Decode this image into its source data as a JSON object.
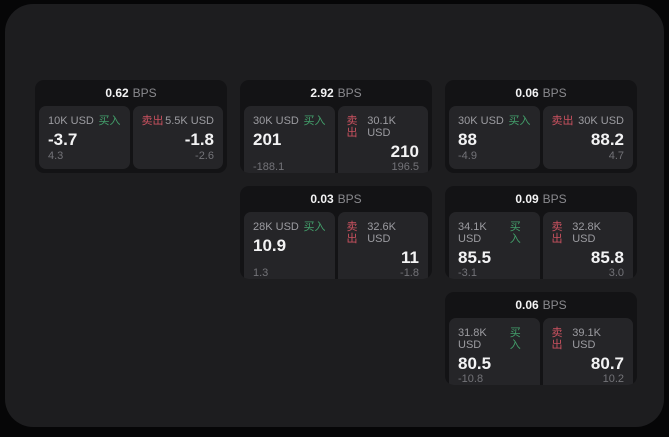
{
  "labels": {
    "bps": "BPS",
    "buy": "买入",
    "sell": "卖出"
  },
  "colors": {
    "buy": "#43a06b",
    "sell": "#cb5260"
  },
  "cards": [
    {
      "bps": "0.62",
      "buy": {
        "amount": "10K USD",
        "price": "-3.7",
        "delta": "4.3"
      },
      "sell": {
        "amount": "5.5K USD",
        "price": "-1.8",
        "delta": "-2.6"
      }
    },
    {
      "bps": "2.92",
      "buy": {
        "amount": "30K USD",
        "price": "201",
        "delta": "-188.1"
      },
      "sell": {
        "amount": "30.1K USD",
        "price": "210",
        "delta": "196.5"
      }
    },
    {
      "bps": "0.06",
      "buy": {
        "amount": "30K USD",
        "price": "88",
        "delta": "-4.9"
      },
      "sell": {
        "amount": "30K USD",
        "price": "88.2",
        "delta": "4.7"
      }
    },
    {
      "bps": "0.03",
      "buy": {
        "amount": "28K USD",
        "price": "10.9",
        "delta": "1.3"
      },
      "sell": {
        "amount": "32.6K USD",
        "price": "11",
        "delta": "-1.8"
      }
    },
    {
      "bps": "0.09",
      "buy": {
        "amount": "34.1K USD",
        "price": "85.5",
        "delta": "-3.1"
      },
      "sell": {
        "amount": "32.8K USD",
        "price": "85.8",
        "delta": "3.0"
      }
    },
    {
      "bps": "0.06",
      "buy": {
        "amount": "31.8K USD",
        "price": "80.5",
        "delta": "-10.8"
      },
      "sell": {
        "amount": "39.1K USD",
        "price": "80.7",
        "delta": "10.2"
      }
    }
  ]
}
